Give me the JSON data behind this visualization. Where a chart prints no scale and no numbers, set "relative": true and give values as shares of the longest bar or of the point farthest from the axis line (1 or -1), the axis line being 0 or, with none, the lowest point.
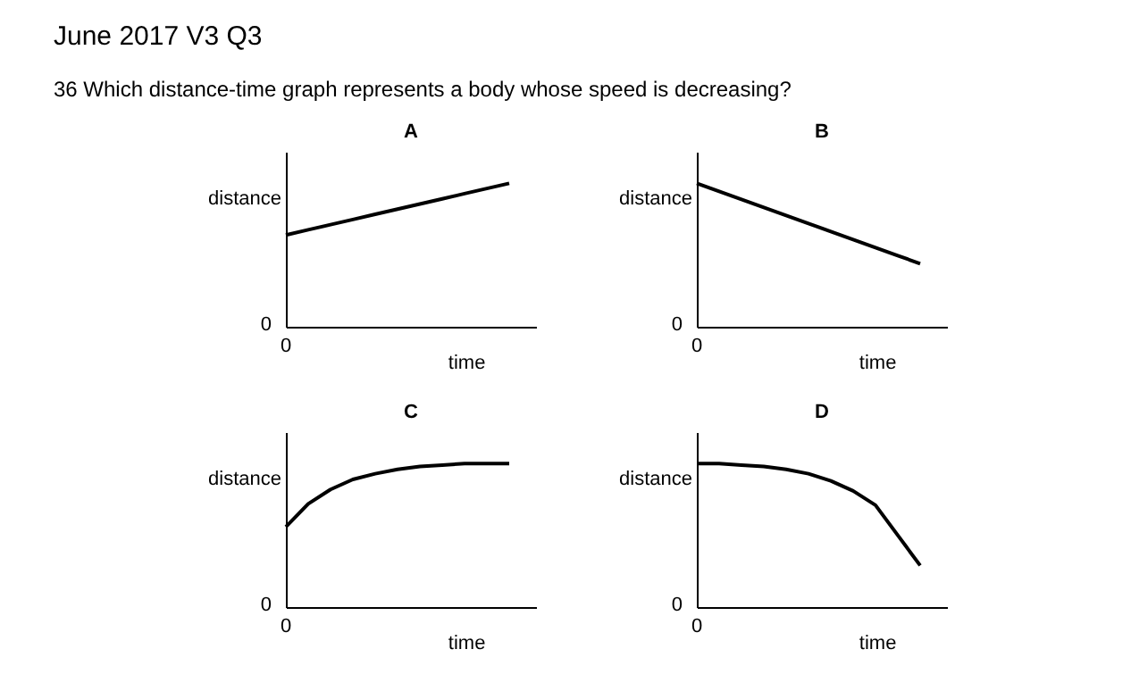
{
  "chart_data": [
    {
      "type": "other",
      "title": "June 2017 V3 Q3",
      "subtitle": "36  Which distance-time graph represents a body whose speed is decreasing?"
    },
    {
      "type": "line",
      "title": "A",
      "xlabel": "time",
      "ylabel": "distance",
      "relative": true,
      "tick_labels": false,
      "grid": false,
      "marker": "none",
      "color": "#000000",
      "annotations": [
        "0",
        "0"
      ],
      "categories": [
        null,
        null,
        null,
        null,
        null,
        null,
        null,
        null,
        null,
        null,
        null
      ],
      "values": [
        0.64,
        0.676,
        0.712,
        0.748,
        0.784,
        0.82,
        0.856,
        0.892,
        0.928,
        0.964,
        1
      ]
    },
    {
      "type": "line",
      "title": "B",
      "xlabel": "time",
      "ylabel": "distance",
      "relative": true,
      "tick_labels": false,
      "grid": false,
      "marker": "none",
      "color": "#000000",
      "annotations": [
        "0",
        "0"
      ],
      "categories": [
        null,
        null,
        null,
        null,
        null,
        null,
        null,
        null,
        null,
        null,
        null
      ],
      "values": [
        1,
        0.944,
        0.888,
        0.832,
        0.776,
        0.72,
        0.664,
        0.608,
        0.552,
        0.496,
        0.44
      ]
    },
    {
      "type": "line",
      "title": "C",
      "xlabel": "time",
      "ylabel": "distance",
      "relative": true,
      "tick_labels": false,
      "grid": false,
      "marker": "none",
      "color": "#000000",
      "annotations": [
        "0",
        "0"
      ],
      "categories": [
        null,
        null,
        null,
        null,
        null,
        null,
        null,
        null,
        null,
        null,
        null
      ],
      "values": [
        0.56,
        0.72,
        0.82,
        0.89,
        0.93,
        0.96,
        0.98,
        0.99,
        1,
        1,
        1
      ]
    },
    {
      "type": "line",
      "title": "D",
      "xlabel": "time",
      "ylabel": "distance",
      "relative": true,
      "tick_labels": false,
      "grid": false,
      "marker": "none",
      "color": "#000000",
      "annotations": [
        "0",
        "0"
      ],
      "categories": [
        null,
        null,
        null,
        null,
        null,
        null,
        null,
        null,
        null,
        null,
        null
      ],
      "values": [
        1,
        1,
        0.99,
        0.98,
        0.96,
        0.93,
        0.88,
        0.81,
        0.71,
        0.5,
        0.29
      ]
    }
  ]
}
